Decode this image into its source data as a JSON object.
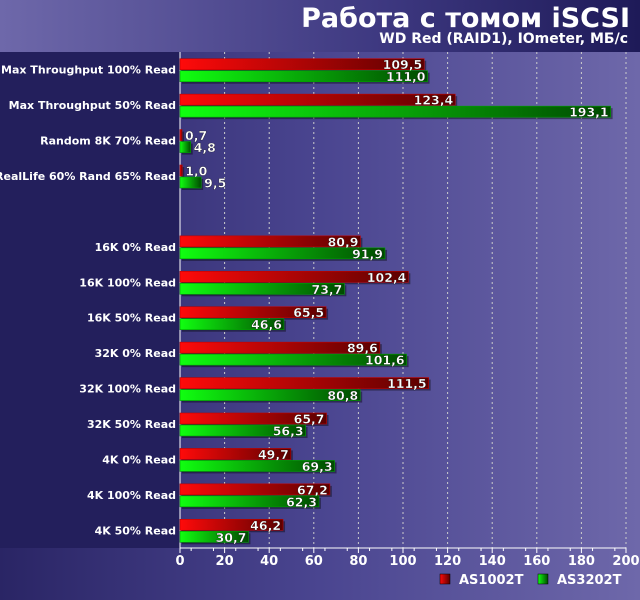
{
  "chart_data": {
    "type": "bar",
    "orientation": "horizontal",
    "title": "Работа с томом iSCSI",
    "subtitle": "WD Red (RAID1), IOmeter, МБ/с",
    "categories": [
      "Max Throughput 100% Read",
      "Max Throughput 50% Read",
      "Random 8K 70% Read",
      "RealLife 60% Rand 65% Read",
      "",
      "16K  0% Read",
      "16K  100% Read",
      "16K  50% Read",
      "32K  0% Read",
      "32K  100% Read",
      "32K  50% Read",
      "4K  0% Read",
      "4K  100% Read",
      "4K  50% Read"
    ],
    "series": [
      {
        "name": "AS1002T",
        "color": "#e00000",
        "values": [
          109.5,
          123.4,
          0.7,
          1.0,
          null,
          80.9,
          102.4,
          65.5,
          89.6,
          111.5,
          65.7,
          49.7,
          67.2,
          46.2
        ],
        "labels": [
          "109,5",
          "123,4",
          "0,7",
          "1,0",
          "",
          "80,9",
          "102,4",
          "65,5",
          "89,6",
          "111,5",
          "65,7",
          "49,7",
          "67,2",
          "46,2"
        ]
      },
      {
        "name": "AS3202T",
        "color": "#00d000",
        "values": [
          111.0,
          193.1,
          4.8,
          9.5,
          null,
          91.9,
          73.7,
          46.6,
          101.6,
          80.8,
          56.3,
          69.3,
          62.3,
          30.7
        ],
        "labels": [
          "111,0",
          "193,1",
          "4,8",
          "9,5",
          "",
          "91,9",
          "73,7",
          "46,6",
          "101,6",
          "80,8",
          "56,3",
          "69,3",
          "62,3",
          "30,7"
        ]
      }
    ],
    "xlim": [
      0,
      200
    ],
    "xticks": [
      "0",
      "20",
      "40",
      "60",
      "80",
      "100",
      "120",
      "140",
      "160",
      "180",
      "200"
    ],
    "grid": true,
    "legend": "bottom-right"
  }
}
